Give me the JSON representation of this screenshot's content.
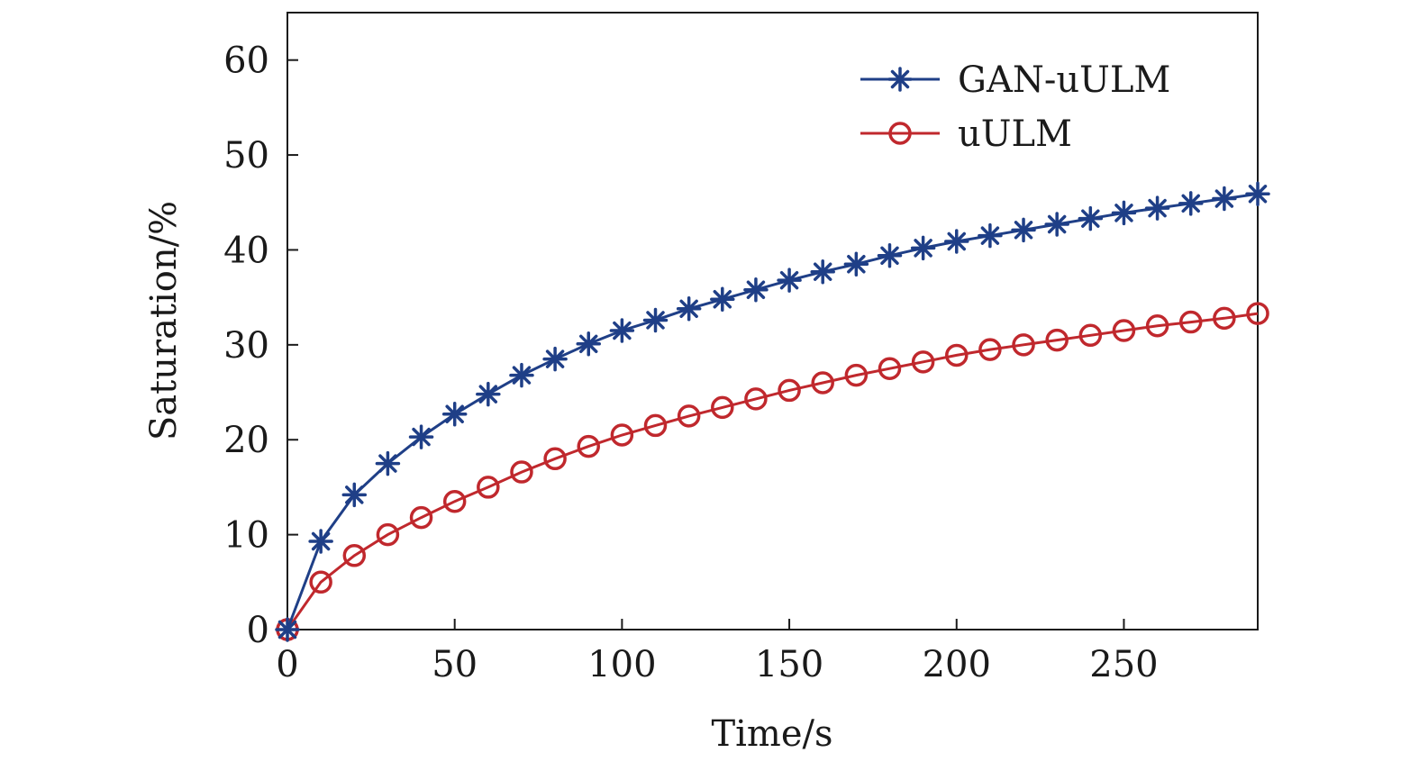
{
  "chart_data": {
    "type": "line",
    "title": "",
    "xlabel": "Time/s",
    "ylabel": "Saturation/%",
    "xlim": [
      0,
      290
    ],
    "ylim": [
      0,
      65
    ],
    "xticks": [
      0,
      50,
      100,
      150,
      200,
      250
    ],
    "yticks": [
      0,
      10,
      20,
      30,
      40,
      50,
      60
    ],
    "grid": false,
    "legend_position": "top-right",
    "x": [
      0,
      10,
      20,
      30,
      40,
      50,
      60,
      70,
      80,
      90,
      100,
      110,
      120,
      130,
      140,
      150,
      160,
      170,
      180,
      190,
      200,
      210,
      220,
      230,
      240,
      250,
      260,
      270,
      280,
      290
    ],
    "series": [
      {
        "name": "GAN-uULM",
        "color": "#1f3f87",
        "marker": "asterisk",
        "values": [
          0,
          9.3,
          14.2,
          17.5,
          20.3,
          22.7,
          24.8,
          26.8,
          28.5,
          30.1,
          31.5,
          32.6,
          33.8,
          34.8,
          35.8,
          36.8,
          37.7,
          38.5,
          39.4,
          40.2,
          40.9,
          41.5,
          42.1,
          42.7,
          43.3,
          43.9,
          44.4,
          44.9,
          45.4,
          45.9
        ]
      },
      {
        "name": "uULM",
        "color": "#c0282d",
        "marker": "circle",
        "values": [
          0,
          5.0,
          7.8,
          10.0,
          11.8,
          13.5,
          15.0,
          16.6,
          18.0,
          19.3,
          20.5,
          21.5,
          22.5,
          23.4,
          24.3,
          25.2,
          26.0,
          26.8,
          27.5,
          28.2,
          28.9,
          29.5,
          30.0,
          30.5,
          31.0,
          31.5,
          32.0,
          32.4,
          32.8,
          33.3
        ]
      }
    ]
  }
}
